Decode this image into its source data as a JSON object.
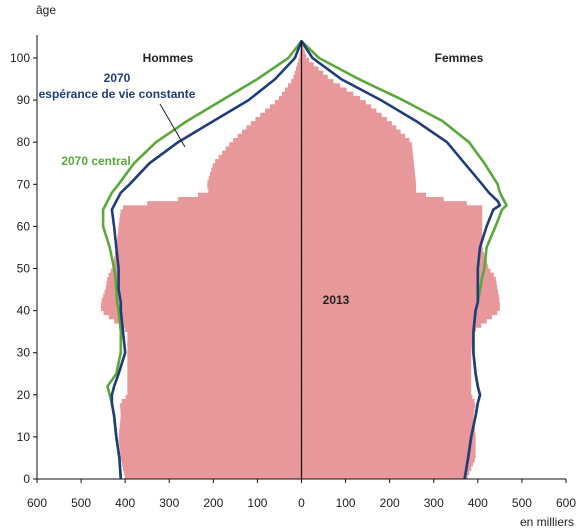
{
  "chart_data": {
    "type": "area",
    "ylabel": "âge",
    "xlabel": "en milliers",
    "xlim": [
      -600,
      600
    ],
    "ylim": [
      0,
      105
    ],
    "x_ticks": [
      "600",
      "500",
      "400",
      "300",
      "200",
      "100",
      "0",
      "100",
      "200",
      "300",
      "400",
      "500",
      "600"
    ],
    "y_ticks": [
      "0",
      "10",
      "20",
      "30",
      "40",
      "50",
      "60",
      "70",
      "80",
      "90",
      "100"
    ],
    "group_labels": {
      "men": "Hommes",
      "women": "Femmes"
    },
    "annotations": {
      "constant_year": "2070",
      "constant_label": "espérance de vie constante",
      "central_label": "2070 central",
      "bars_label": "2013"
    },
    "colors": {
      "bars": "#e8989a",
      "central_2070": "#5aa83a",
      "constant_2070": "#1f3d7a",
      "axis": "#111111"
    },
    "ages": [
      0,
      5,
      10,
      15,
      18,
      20,
      22,
      25,
      30,
      35,
      40,
      42,
      45,
      48,
      50,
      55,
      60,
      64,
      65,
      66,
      67,
      68,
      70,
      75,
      80,
      85,
      90,
      95,
      100,
      104
    ],
    "series": [
      {
        "name": "2013",
        "men": [
          400,
          410,
          415,
          410,
          412,
          395,
          395,
          395,
          395,
          395,
          455,
          455,
          445,
          440,
          430,
          420,
          415,
          410,
          400,
          300,
          260,
          210,
          215,
          200,
          160,
          110,
          55,
          20,
          5,
          0
        ],
        "women": [
          375,
          395,
          395,
          390,
          395,
          385,
          385,
          385,
          385,
          390,
          450,
          450,
          445,
          440,
          425,
          410,
          410,
          410,
          410,
          340,
          305,
          260,
          260,
          255,
          250,
          200,
          140,
          65,
          12,
          0
        ]
      },
      {
        "name": "2070",
        "men": [
          410,
          413,
          420,
          425,
          430,
          430,
          425,
          415,
          400,
          405,
          410,
          410,
          415,
          415,
          415,
          420,
          425,
          430,
          425,
          420,
          415,
          410,
          390,
          345,
          280,
          200,
          120,
          60,
          15,
          0
        ],
        "women": [
          370,
          378,
          385,
          395,
          400,
          405,
          400,
          395,
          390,
          390,
          395,
          400,
          400,
          400,
          400,
          405,
          420,
          435,
          450,
          445,
          435,
          425,
          410,
          370,
          330,
          260,
          180,
          90,
          25,
          0
        ]
      },
      {
        "name": "2070 central",
        "men": [
          410,
          413,
          420,
          425,
          430,
          435,
          440,
          420,
          410,
          410,
          415,
          418,
          420,
          422,
          425,
          435,
          450,
          450,
          445,
          440,
          435,
          430,
          415,
          380,
          330,
          260,
          180,
          100,
          30,
          0
        ],
        "women": [
          370,
          378,
          385,
          395,
          400,
          405,
          400,
          395,
          390,
          390,
          395,
          400,
          405,
          410,
          415,
          420,
          440,
          455,
          465,
          460,
          455,
          450,
          445,
          415,
          380,
          320,
          230,
          130,
          40,
          0
        ]
      }
    ]
  }
}
